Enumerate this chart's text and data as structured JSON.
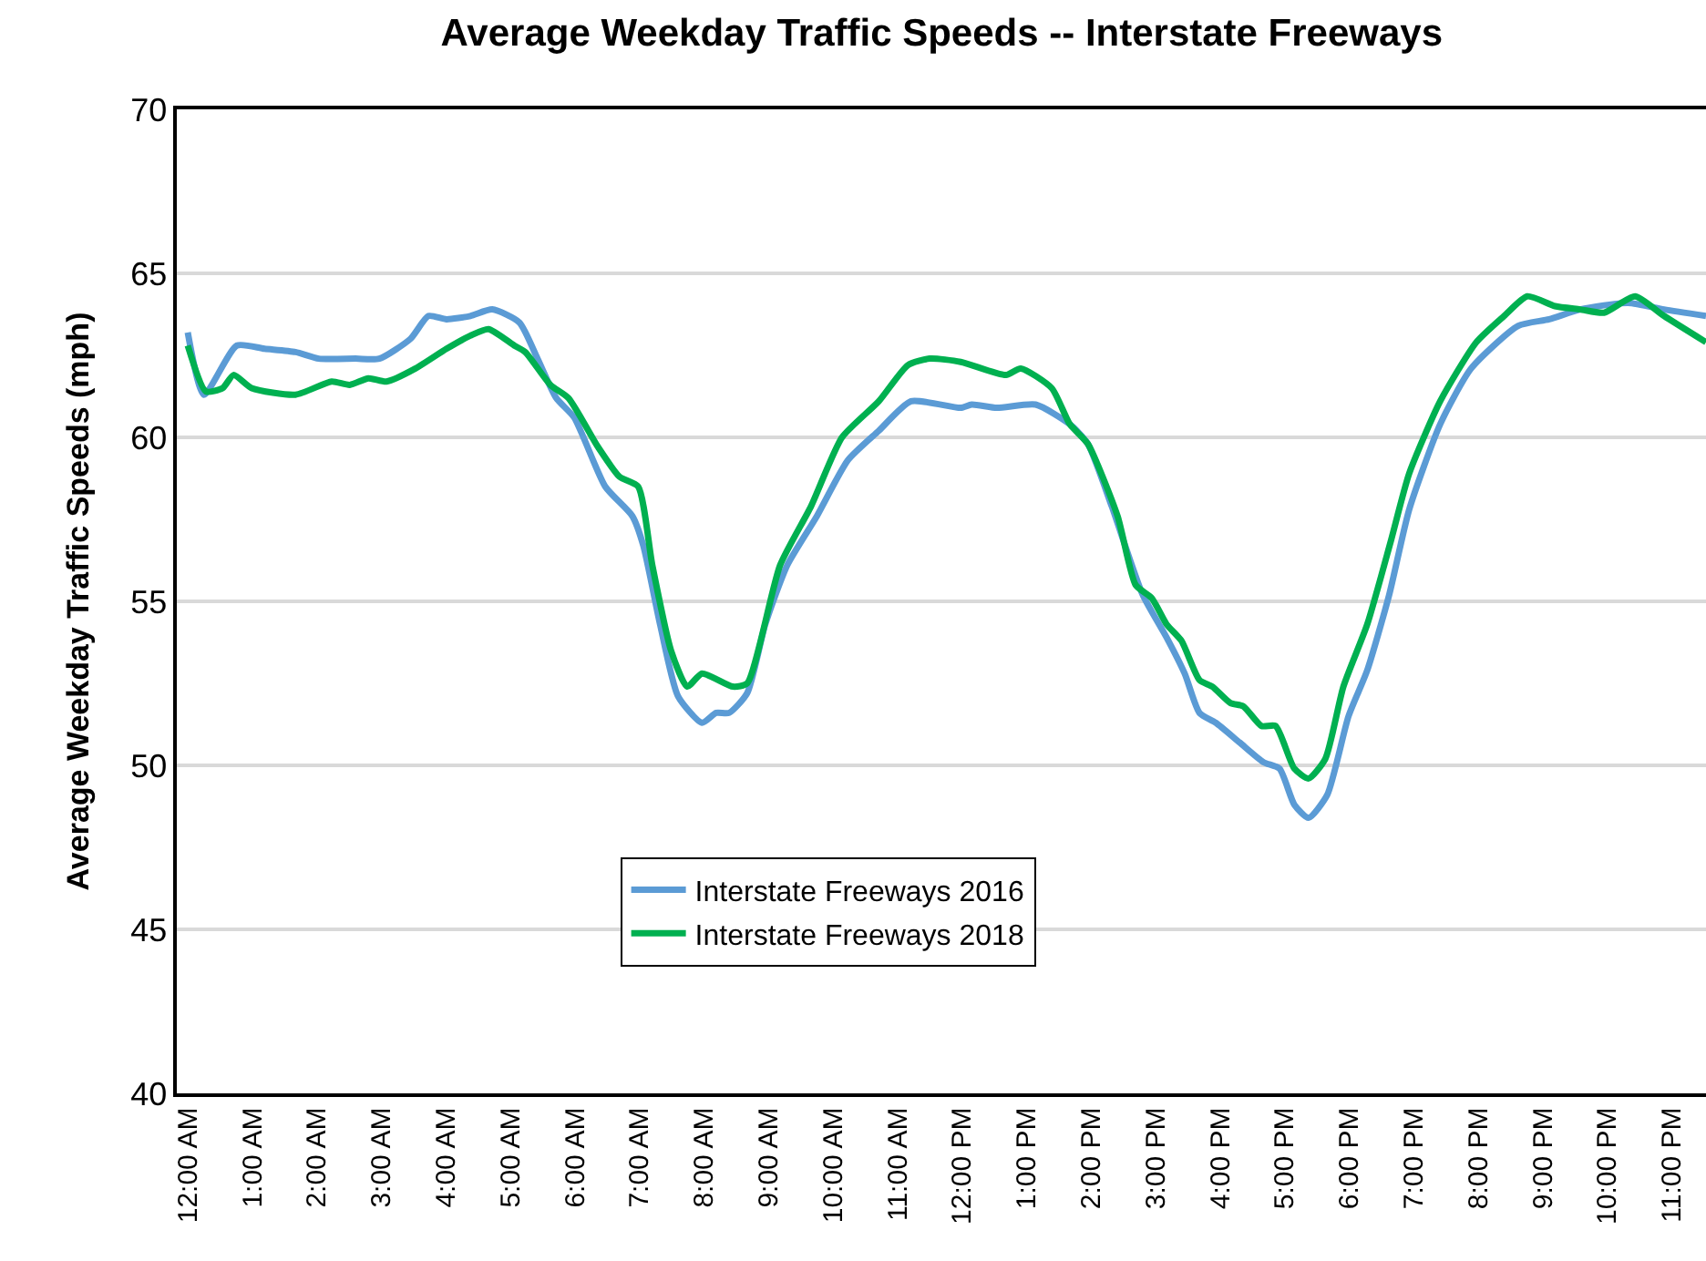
{
  "chart_data": {
    "type": "line",
    "title": "Average Weekday Traffic Speeds -- Interstate Freeways",
    "ylabel": "Average Weekday Traffic Speeds (mph)",
    "xlim": [
      -0.17,
      23.53
    ],
    "xticks": [
      {
        "value": 0,
        "label": "12:00 AM"
      },
      {
        "value": 1,
        "label": "1:00 AM"
      },
      {
        "value": 2,
        "label": "2:00 AM"
      },
      {
        "value": 3,
        "label": "3:00 AM"
      },
      {
        "value": 4,
        "label": "4:00 AM"
      },
      {
        "value": 5,
        "label": "5:00 AM"
      },
      {
        "value": 6,
        "label": "6:00 AM"
      },
      {
        "value": 7,
        "label": "7:00 AM"
      },
      {
        "value": 8,
        "label": "8:00 AM"
      },
      {
        "value": 9,
        "label": "9:00 AM"
      },
      {
        "value": 10,
        "label": "10:00 AM"
      },
      {
        "value": 11,
        "label": "11:00 AM"
      },
      {
        "value": 12,
        "label": "12:00 PM"
      },
      {
        "value": 13,
        "label": "1:00 PM"
      },
      {
        "value": 14,
        "label": "2:00 PM"
      },
      {
        "value": 15,
        "label": "3:00 PM"
      },
      {
        "value": 16,
        "label": "4:00 PM"
      },
      {
        "value": 17,
        "label": "5:00 PM"
      },
      {
        "value": 18,
        "label": "6:00 PM"
      },
      {
        "value": 19,
        "label": "7:00 PM"
      },
      {
        "value": 20,
        "label": "8:00 PM"
      },
      {
        "value": 21,
        "label": "9:00 PM"
      },
      {
        "value": 22,
        "label": "10:00 PM"
      },
      {
        "value": 23,
        "label": "11:00 PM"
      }
    ],
    "ylim": [
      40,
      70
    ],
    "yticks": [
      40,
      45,
      50,
      55,
      60,
      65,
      70
    ],
    "grid": "y",
    "legend": "bottom",
    "marker": "none",
    "line_style": "solid",
    "series": [
      {
        "name": "Interstate Freeways 2016",
        "color": "#5b9bd5",
        "x": [
          0,
          0.25,
          0.76,
          1.19,
          1.67,
          2.03,
          2.6,
          2.97,
          3.45,
          3.73,
          4.01,
          4.38,
          4.72,
          5.14,
          5.42,
          5.71,
          5.99,
          6.47,
          6.89,
          7.06,
          7.32,
          7.6,
          7.97,
          8.19,
          8.39,
          8.67,
          8.95,
          9.29,
          9.75,
          10.23,
          10.71,
          11.21,
          11.98,
          12.15,
          12.54,
          13.14,
          13.67,
          13.95,
          14.32,
          14.8,
          15.17,
          15.45,
          15.68,
          15.93,
          16.3,
          16.67,
          16.92,
          17.15,
          17.37,
          17.66,
          17.99,
          18.28,
          18.62,
          18.93,
          19.41,
          19.89,
          20.62,
          21.1,
          21.58,
          22.32,
          22.88,
          23.53
        ],
        "values": [
          63.2,
          61.3,
          62.8,
          62.7,
          62.6,
          62.4,
          62.4,
          62.4,
          63.0,
          63.7,
          63.6,
          63.7,
          63.9,
          63.5,
          62.4,
          61.2,
          60.6,
          58.5,
          57.6,
          56.7,
          54.3,
          52.1,
          51.3,
          51.6,
          51.6,
          52.2,
          54.3,
          56.1,
          57.6,
          59.3,
          60.2,
          61.1,
          60.9,
          61.0,
          60.9,
          61.0,
          60.4,
          59.8,
          57.9,
          55.2,
          53.9,
          52.8,
          51.6,
          51.3,
          50.7,
          50.1,
          49.9,
          48.8,
          48.4,
          49.1,
          51.5,
          52.9,
          55.2,
          57.8,
          60.4,
          62.1,
          63.4,
          63.6,
          63.9,
          64.1,
          63.9,
          63.7
        ]
      },
      {
        "name": "Interstate Freeways 2018",
        "color": "#00b050",
        "x": [
          0,
          0.28,
          0.54,
          0.71,
          0.99,
          1.67,
          2.23,
          2.51,
          2.8,
          3.08,
          3.53,
          4.01,
          4.38,
          4.66,
          5.06,
          5.23,
          5.62,
          5.9,
          6.36,
          6.69,
          6.98,
          7.2,
          7.49,
          7.74,
          7.97,
          8.45,
          8.67,
          9.18,
          9.66,
          10.14,
          10.71,
          11.16,
          11.5,
          11.98,
          12.68,
          12.91,
          13.39,
          13.67,
          13.95,
          14.41,
          14.69,
          14.94,
          15.17,
          15.4,
          15.68,
          15.88,
          16.16,
          16.36,
          16.64,
          16.86,
          17.15,
          17.37,
          17.63,
          17.91,
          18.28,
          18.64,
          18.93,
          19.41,
          19.97,
          20.4,
          20.76,
          21.19,
          21.58,
          21.95,
          22.43,
          22.88,
          23.53
        ],
        "values": [
          62.8,
          61.4,
          61.5,
          61.9,
          61.5,
          61.3,
          61.7,
          61.6,
          61.8,
          61.7,
          62.1,
          62.7,
          63.1,
          63.3,
          62.8,
          62.6,
          61.6,
          61.2,
          59.7,
          58.8,
          58.5,
          56.1,
          53.5,
          52.4,
          52.8,
          52.4,
          52.5,
          56.1,
          57.9,
          60.0,
          61.1,
          62.2,
          62.4,
          62.3,
          61.9,
          62.1,
          61.5,
          60.4,
          59.8,
          57.6,
          55.5,
          55.1,
          54.3,
          53.8,
          52.6,
          52.4,
          51.9,
          51.8,
          51.2,
          51.2,
          49.9,
          49.6,
          50.2,
          52.4,
          54.3,
          56.8,
          58.9,
          61.1,
          62.9,
          63.7,
          64.3,
          64.0,
          63.9,
          63.8,
          64.3,
          63.7,
          62.9
        ]
      }
    ]
  }
}
